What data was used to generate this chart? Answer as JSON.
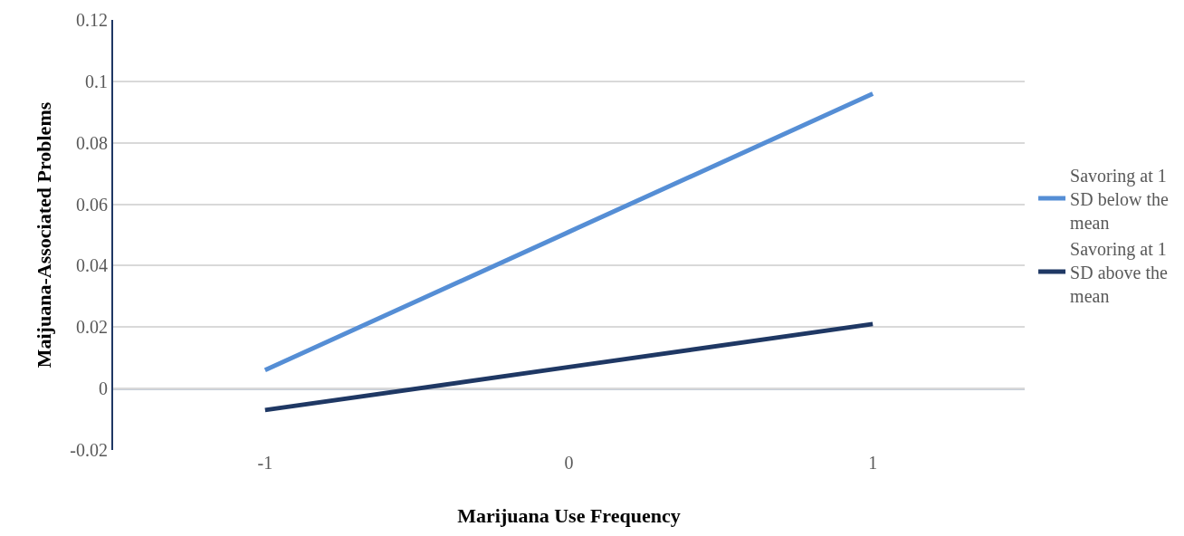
{
  "chart_data": {
    "type": "line",
    "xlabel": "Marijuana Use Frequency",
    "ylabel": "Maijuana-Associated Problems",
    "categories": [
      "-1",
      "0",
      "1"
    ],
    "series": [
      {
        "name": "Savoring at 1 SD below the mean",
        "color": "#558ed5",
        "values": [
          0.006,
          0.051,
          0.096
        ]
      },
      {
        "name": "Savoring at 1 SD above the mean",
        "color": "#1f3864",
        "values": [
          -0.007,
          0.007,
          0.021
        ]
      }
    ],
    "ylim": [
      -0.02,
      0.12
    ],
    "yticks": [
      -0.02,
      0,
      0.02,
      0.04,
      0.06,
      0.08,
      {
        "value": 0.1,
        "label": "0.1"
      },
      0.12
    ],
    "ref_lines": [
      {
        "axis": "y",
        "value": 0,
        "color": "#1f3864"
      }
    ],
    "grid": "y",
    "legend": "right",
    "marker": "none",
    "line_style": "solid"
  }
}
